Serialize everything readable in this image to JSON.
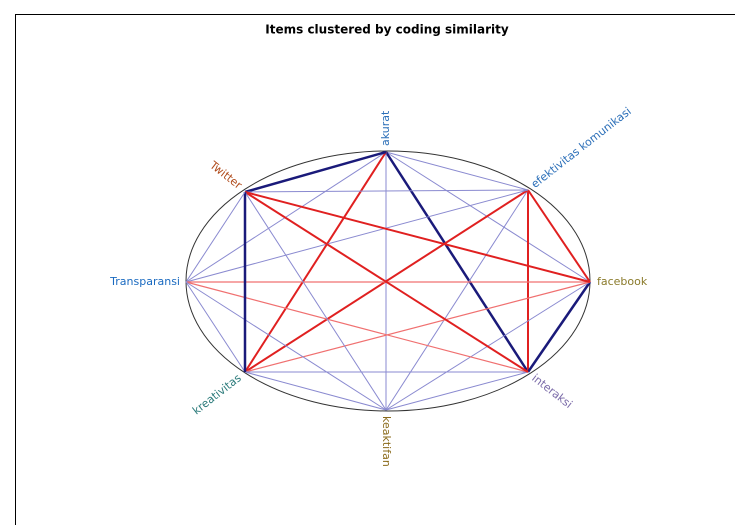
{
  "title": "Items clustered by coding similarity",
  "nodes": [
    {
      "label": "akurat"
    },
    {
      "label": "efektivitas komunikasi"
    },
    {
      "label": "facebook"
    },
    {
      "label": "interaksi"
    },
    {
      "label": "keaktifan"
    },
    {
      "label": "kreativitas"
    },
    {
      "label": "Transparansi"
    },
    {
      "label": "Twitter"
    }
  ]
}
